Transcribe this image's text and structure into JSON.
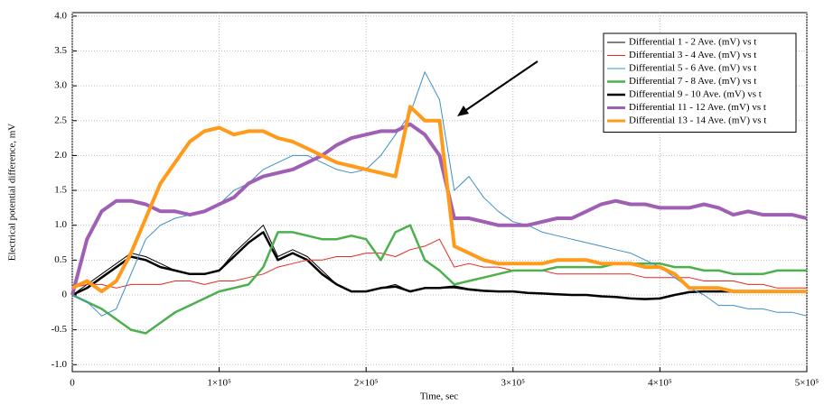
{
  "chart_data": {
    "type": "line",
    "xlabel": "Time, sec",
    "ylabel": "Electrical potential difference, mV",
    "xlim": [
      0,
      500000
    ],
    "ylim": [
      -1.1,
      4.05
    ],
    "xticks": [
      0,
      {
        "value": 100000,
        "label": "1×10⁵"
      },
      {
        "value": 200000,
        "label": "2×10⁵"
      },
      {
        "value": 300000,
        "label": "3×10⁵"
      },
      {
        "value": 400000,
        "label": "4×10⁵"
      },
      {
        "value": 500000,
        "label": "5×10⁵"
      }
    ],
    "yticks": [
      {
        "value": -1,
        "label": "-1.0"
      },
      -0.5,
      0,
      0.5,
      {
        "value": 1,
        "label": "1.0"
      },
      1.5,
      {
        "value": 2,
        "label": "2.0"
      },
      2.5,
      {
        "value": 3,
        "label": "3.0"
      },
      3.5,
      {
        "value": 4,
        "label": "4.0"
      }
    ],
    "grid": true,
    "legend": "upper right",
    "x": [
      0,
      10000,
      20000,
      30000,
      40000,
      50000,
      60000,
      70000,
      80000,
      90000,
      100000,
      110000,
      120000,
      130000,
      140000,
      150000,
      160000,
      170000,
      180000,
      190000,
      200000,
      210000,
      220000,
      230000,
      240000,
      250000,
      260000,
      270000,
      280000,
      290000,
      300000,
      310000,
      320000,
      330000,
      340000,
      350000,
      360000,
      370000,
      380000,
      390000,
      400000,
      410000,
      420000,
      430000,
      440000,
      450000,
      460000,
      470000,
      480000,
      490000,
      500000
    ],
    "series": [
      {
        "name": "Differential 1 - 2 Ave. (mV) vs t",
        "color": "#000000",
        "width": 1,
        "values": [
          0,
          0.15,
          0.3,
          0.45,
          0.6,
          0.55,
          0.45,
          0.35,
          0.3,
          0.3,
          0.35,
          0.6,
          0.8,
          1.0,
          0.55,
          0.65,
          0.55,
          0.35,
          0.15,
          0.05,
          0.05,
          0.1,
          0.15,
          0.05,
          0.1,
          0.1,
          0.1,
          0.07,
          0.05,
          0.05,
          0.05,
          0.03,
          0.02,
          0,
          0,
          0,
          -0.02,
          -0.03,
          -0.05,
          -0.05,
          -0.05,
          0,
          0.05,
          0.05,
          0.05,
          0.05,
          0.05,
          0.05,
          0.05,
          0.05,
          0.05
        ]
      },
      {
        "name": "Differential 3 - 4 Ave. (mV) vs t",
        "color": "#e8281e",
        "width": 1,
        "values": [
          0.1,
          0.15,
          0.15,
          0.1,
          0.15,
          0.15,
          0.15,
          0.2,
          0.2,
          0.15,
          0.2,
          0.2,
          0.25,
          0.3,
          0.4,
          0.45,
          0.5,
          0.5,
          0.55,
          0.55,
          0.6,
          0.6,
          0.55,
          0.65,
          0.7,
          0.8,
          0.4,
          0.45,
          0.4,
          0.4,
          0.35,
          0.35,
          0.35,
          0.3,
          0.3,
          0.3,
          0.3,
          0.3,
          0.3,
          0.25,
          0.25,
          0.25,
          0.25,
          0.2,
          0.2,
          0.2,
          0.15,
          0.15,
          0.1,
          0.1,
          0.1
        ]
      },
      {
        "name": "Differential 5 - 6 Ave. (mV) vs t",
        "color": "#3d8fc6",
        "width": 1,
        "values": [
          0,
          -0.1,
          -0.3,
          -0.2,
          0.3,
          0.8,
          1.0,
          1.1,
          1.15,
          1.2,
          1.3,
          1.5,
          1.6,
          1.8,
          1.9,
          2.0,
          2.0,
          1.9,
          1.8,
          1.75,
          1.8,
          2.0,
          2.3,
          2.6,
          3.2,
          2.8,
          1.5,
          1.7,
          1.4,
          1.2,
          1.05,
          1.0,
          0.9,
          0.85,
          0.8,
          0.75,
          0.7,
          0.65,
          0.6,
          0.5,
          0.4,
          0.25,
          0.1,
          0,
          -0.15,
          -0.15,
          -0.2,
          -0.2,
          -0.25,
          -0.25,
          -0.3
        ]
      },
      {
        "name": "Differential 7 - 8 Ave. (mV) vs t",
        "color": "#4cb04c",
        "width": 2.5,
        "values": [
          0,
          -0.1,
          -0.2,
          -0.35,
          -0.5,
          -0.55,
          -0.4,
          -0.25,
          -0.15,
          -0.05,
          0.05,
          0.1,
          0.15,
          0.4,
          0.9,
          0.9,
          0.85,
          0.8,
          0.8,
          0.85,
          0.8,
          0.5,
          0.9,
          1.0,
          0.5,
          0.35,
          0.15,
          0.2,
          0.25,
          0.3,
          0.35,
          0.35,
          0.35,
          0.4,
          0.4,
          0.4,
          0.4,
          0.45,
          0.45,
          0.45,
          0.45,
          0.4,
          0.4,
          0.35,
          0.35,
          0.3,
          0.3,
          0.3,
          0.35,
          0.35,
          0.35
        ]
      },
      {
        "name": "Differential 9 - 10 Ave. (mV) vs t",
        "color": "#000000",
        "width": 2.5,
        "values": [
          0,
          0.1,
          0.25,
          0.4,
          0.55,
          0.5,
          0.4,
          0.35,
          0.3,
          0.3,
          0.35,
          0.55,
          0.75,
          0.9,
          0.5,
          0.6,
          0.5,
          0.3,
          0.15,
          0.05,
          0.05,
          0.1,
          0.12,
          0.05,
          0.1,
          0.1,
          0.12,
          0.08,
          0.06,
          0.05,
          0.05,
          0.03,
          0.02,
          0.01,
          0,
          0,
          -0.02,
          -0.03,
          -0.05,
          -0.06,
          -0.05,
          0,
          0.04,
          0.05,
          0.05,
          0.05,
          0.05,
          0.05,
          0.05,
          0.05,
          0.05
        ]
      },
      {
        "name": "Differential 11 - 12 Ave. (mV) vs t",
        "color": "#9e5fb5",
        "width": 4,
        "values": [
          0,
          0.8,
          1.2,
          1.35,
          1.35,
          1.3,
          1.2,
          1.2,
          1.15,
          1.2,
          1.3,
          1.4,
          1.6,
          1.7,
          1.75,
          1.8,
          1.9,
          2.0,
          2.15,
          2.25,
          2.3,
          2.35,
          2.35,
          2.45,
          2.3,
          2.0,
          1.1,
          1.1,
          1.05,
          1.0,
          1.0,
          1.0,
          1.05,
          1.1,
          1.1,
          1.2,
          1.3,
          1.35,
          1.3,
          1.3,
          1.25,
          1.25,
          1.25,
          1.3,
          1.25,
          1.15,
          1.2,
          1.15,
          1.15,
          1.15,
          1.1
        ]
      },
      {
        "name": "Differential 13 - 14 Ave. (mV) vs t",
        "color": "#ff9a1a",
        "width": 4,
        "values": [
          0.1,
          0.2,
          0.05,
          0.2,
          0.6,
          1.1,
          1.6,
          1.9,
          2.2,
          2.35,
          2.4,
          2.3,
          2.35,
          2.35,
          2.25,
          2.2,
          2.1,
          2.0,
          1.9,
          1.85,
          1.8,
          1.75,
          1.7,
          2.7,
          2.5,
          2.5,
          0.7,
          0.6,
          0.5,
          0.45,
          0.45,
          0.45,
          0.45,
          0.5,
          0.5,
          0.5,
          0.45,
          0.45,
          0.45,
          0.4,
          0.4,
          0.3,
          0.1,
          0.1,
          0.1,
          0.05,
          0.05,
          0.05,
          0.05,
          0.05,
          0.05
        ]
      }
    ]
  }
}
